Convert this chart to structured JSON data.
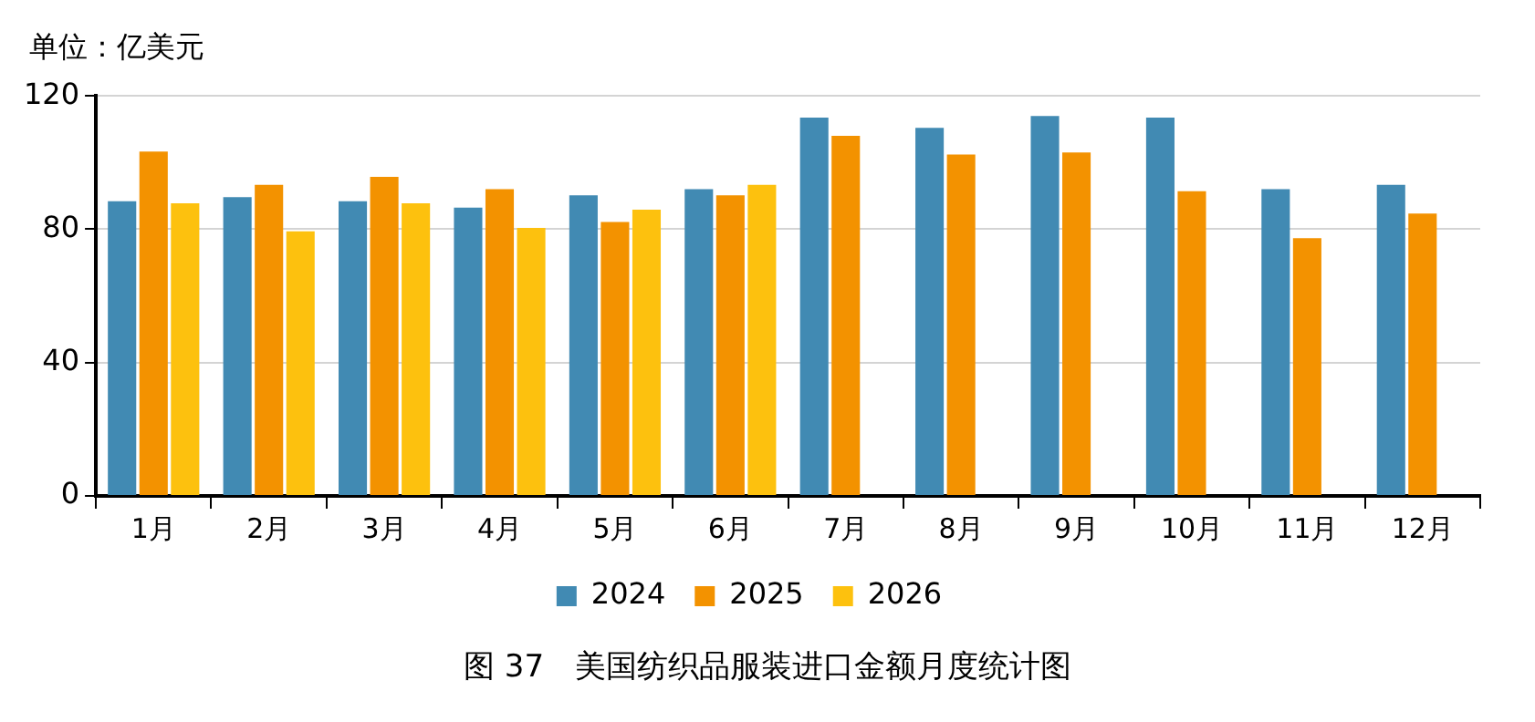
{
  "chart_data": {
    "type": "bar",
    "title": "图 37　美国纺织品服装进口金额月度统计图",
    "ylabel": "单位：亿美元",
    "categories": [
      "1月",
      "2月",
      "3月",
      "4月",
      "5月",
      "6月",
      "7月",
      "8月",
      "9月",
      "10月",
      "11月",
      "12月"
    ],
    "series": [
      {
        "name": "2024",
        "color": "#418ab3",
        "values": [
          88.4,
          89.6,
          88.4,
          86.5,
          90.2,
          92,
          113.5,
          110.4,
          114,
          113.5,
          92,
          93.3
        ]
      },
      {
        "name": "2025",
        "color": "#f39200",
        "values": [
          103.3,
          93.3,
          95.7,
          92,
          82.2,
          90.2,
          108,
          102.4,
          103,
          91.4,
          77.3,
          84.7
        ]
      },
      {
        "name": "2026",
        "color": "#fdc10e",
        "values": [
          87.8,
          79.4,
          87.8,
          80.4,
          85.9,
          93.3,
          null,
          null,
          null,
          null,
          null,
          null
        ]
      }
    ],
    "ylim": [
      0,
      120
    ],
    "yticks": [
      0,
      40,
      80,
      120
    ],
    "grid": "y",
    "legend": "bottom"
  }
}
